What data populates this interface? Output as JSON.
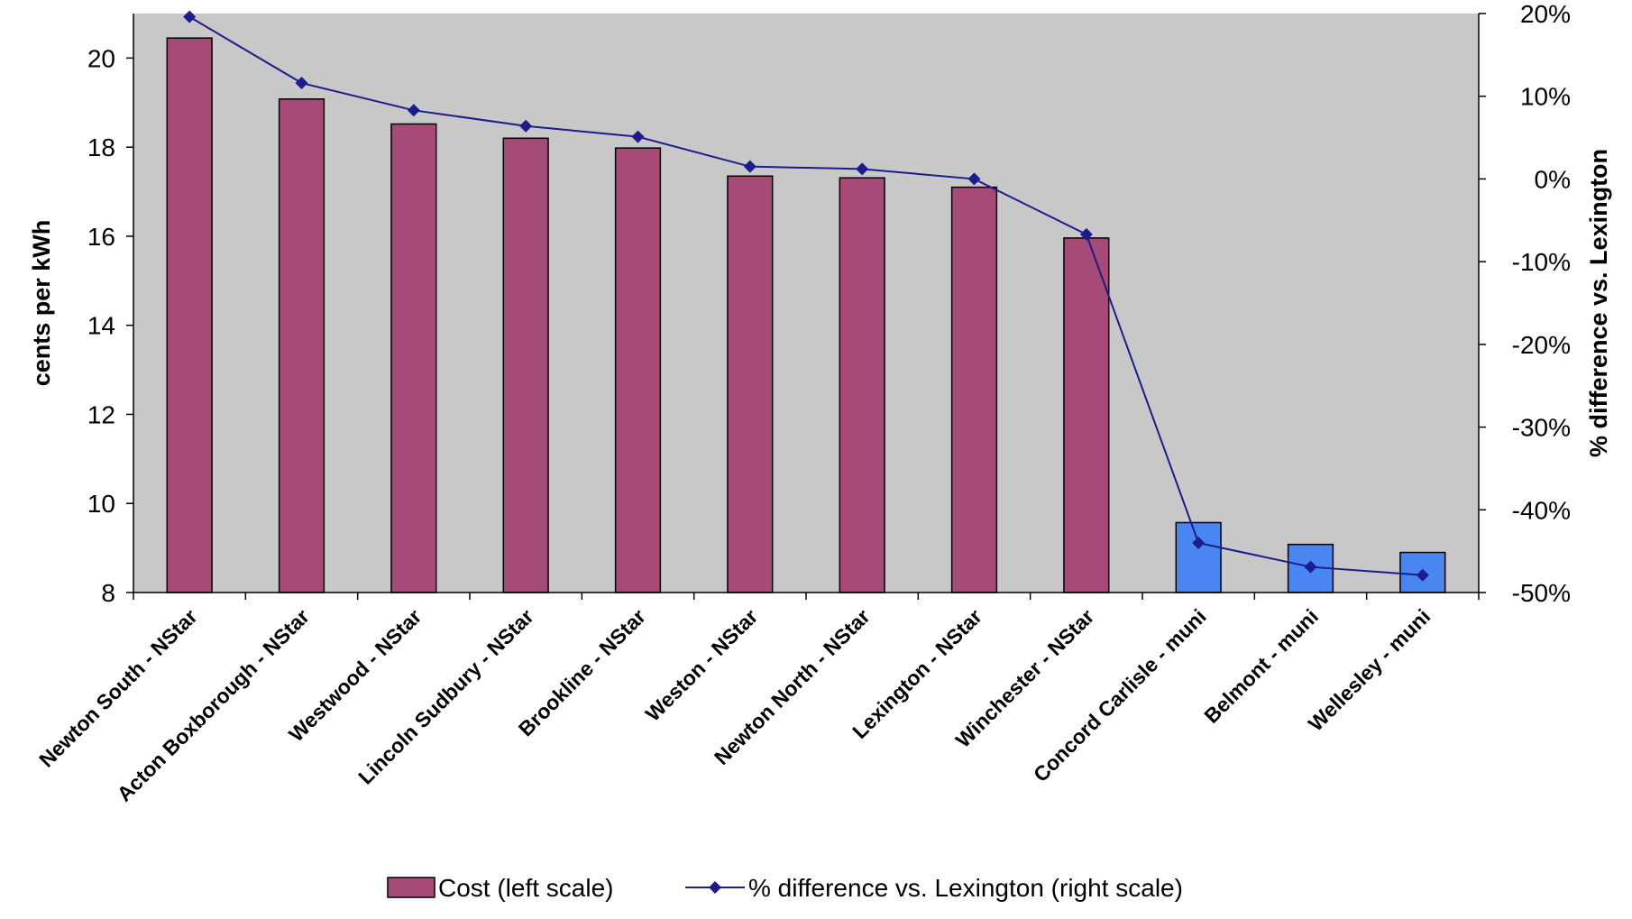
{
  "chart_data": {
    "type": "bar",
    "categories": [
      "Newton South - NStar",
      "Acton Boxborough - NStar",
      "Westwood - NStar",
      "Lincoln Sudbury - NStar",
      "Brookline - NStar",
      "Weston - NStar",
      "Newton North - NStar",
      "Lexington - NStar",
      "Winchester - NStar",
      "Concord Carlisle - muni",
      "Belmont - muni",
      "Wellesley - muni"
    ],
    "series": [
      {
        "name": "Cost (left scale)",
        "type": "bar",
        "axis": "left",
        "values": [
          20.45,
          19.08,
          18.52,
          18.2,
          17.98,
          17.35,
          17.31,
          17.1,
          15.96,
          9.57,
          9.08,
          8.9
        ],
        "colors": [
          "#A64A77",
          "#A64A77",
          "#A64A77",
          "#A64A77",
          "#A64A77",
          "#A64A77",
          "#A64A77",
          "#A64A77",
          "#A64A77",
          "#4A86F2",
          "#4A86F2",
          "#4A86F2"
        ]
      },
      {
        "name": "% difference vs. Lexington (right scale)",
        "type": "line",
        "axis": "right",
        "values": [
          19.6,
          11.6,
          8.3,
          6.4,
          5.1,
          1.5,
          1.2,
          0.0,
          -6.7,
          -44.0,
          -46.9,
          -47.9
        ],
        "color": "#1C1C8C"
      }
    ],
    "ylabel": "cents per kWh",
    "y2label": "% difference vs. Lexington",
    "ylim": [
      8,
      21
    ],
    "y2lim": [
      -50,
      20
    ],
    "yticks": [
      8,
      10,
      12,
      14,
      16,
      18,
      20
    ],
    "y2ticks": [
      -50,
      -40,
      -30,
      -20,
      -10,
      0,
      10,
      20
    ],
    "y2tick_labels": [
      "-50%",
      "-40%",
      "-30%",
      "-20%",
      "-10%",
      "0%",
      "10%",
      "20%"
    ],
    "plot_background": "#C8C8C8",
    "grid": false,
    "legend_position": "bottom",
    "legend": [
      {
        "label": "Cost (left scale)",
        "kind": "bar",
        "color": "#A64A77"
      },
      {
        "label": "% difference vs. Lexington (right scale)",
        "kind": "line",
        "color": "#1C1C8C"
      }
    ]
  }
}
